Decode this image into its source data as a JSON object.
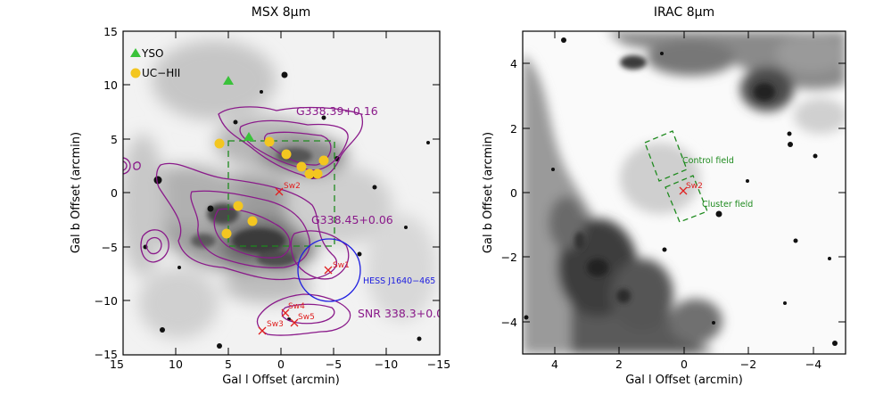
{
  "figure": {
    "left_panel": {
      "title": "MSX 8µm",
      "xlabel": "Gal l Offset (arcmin)",
      "ylabel": "Gal b Offset (arcmin)",
      "xticks": [
        "15",
        "10",
        "5",
        "0",
        "−5",
        "−10",
        "−15"
      ],
      "yticks": [
        "15",
        "10",
        "5",
        "0",
        "−5",
        "−10",
        "−15"
      ],
      "legend": [
        {
          "label": "YSO",
          "marker": "triangle",
          "color": "#3ac23a"
        },
        {
          "label": "UC−HII",
          "marker": "circle",
          "color": "#f3c620"
        }
      ],
      "region_labels": {
        "g338_39": "G338.39+0.16",
        "g338_45": "G338.45+0.06",
        "snr": "SNR 338.3+0.0",
        "hess": "HESS J1640−465"
      },
      "source_labels": [
        "Sw1",
        "Sw2",
        "Sw3",
        "Sw4",
        "Sw5"
      ]
    },
    "right_panel": {
      "title": "IRAC 8µm",
      "xlabel": "Gal l Offset (arcmin)",
      "ylabel": "Gal b Offset (arcmin)",
      "xticks": [
        "4",
        "2",
        "0",
        "−2",
        "−4"
      ],
      "yticks": [
        "4",
        "2",
        "0",
        "−2",
        "−4"
      ],
      "field_labels": {
        "control": "Control field",
        "cluster": "Cluster field",
        "source": "Sw2"
      }
    },
    "colors": {
      "contour": "#8a1a8a",
      "hess_circle": "#2020e0",
      "source_cross": "#e02020",
      "field_box": "#1e8a1e",
      "yso": "#3ac23a",
      "uchii": "#f3c620"
    }
  },
  "chart_data": [
    {
      "type": "scatter",
      "title": "MSX 8µm",
      "xlabel": "Gal l Offset (arcmin)",
      "ylabel": "Gal b Offset (arcmin)",
      "xlim": [
        15,
        -15
      ],
      "ylim": [
        -15,
        15
      ],
      "series": [
        {
          "name": "YSO",
          "points": [
            [
              4.8,
              11.0
            ],
            [
              3.0,
              5.2
            ]
          ]
        },
        {
          "name": "UC-HII",
          "points": [
            [
              3.3,
              4.8
            ],
            [
              -0.5,
              4.8
            ],
            [
              -0.7,
              3.6
            ],
            [
              -2.0,
              2.9
            ],
            [
              -3.2,
              2.5
            ],
            [
              -2.2,
              2.2
            ],
            [
              -3.0,
              1.8
            ],
            [
              -3.8,
              1.8
            ],
            [
              -4.3,
              3.0
            ],
            [
              3.0,
              -2.6
            ],
            [
              4.9,
              -3.6
            ]
          ]
        },
        {
          "name": "Swift sources",
          "points": [
            [
              0.2,
              0.1,
              "Sw2"
            ],
            [
              -4.4,
              -7.3,
              "Sw1"
            ],
            [
              2.0,
              -12.7,
              "Sw3"
            ],
            [
              0.4,
              -11.0,
              "Sw4"
            ],
            [
              -0.8,
              -11.9,
              "Sw5"
            ]
          ]
        }
      ],
      "regions": [
        {
          "name": "HESS J1640-465",
          "shape": "circle",
          "center": [
            -4.3,
            -8.0
          ],
          "radius": 3.6
        },
        {
          "name": "IRAC field",
          "shape": "box",
          "x": [
            5,
            -5
          ],
          "y": [
            -5,
            5
          ]
        }
      ]
    },
    {
      "type": "scatter",
      "title": "IRAC 8µm",
      "xlabel": "Gal l Offset (arcmin)",
      "ylabel": "Gal b Offset (arcmin)",
      "xlim": [
        5,
        -5
      ],
      "ylim": [
        -5,
        5
      ],
      "series": [
        {
          "name": "Swift sources",
          "points": [
            [
              0.0,
              0.05,
              "Sw2"
            ]
          ]
        }
      ],
      "regions": [
        {
          "name": "Control field",
          "shape": "rotated box",
          "center": [
            0.6,
            1.7
          ]
        },
        {
          "name": "Cluster field",
          "shape": "rotated box",
          "center": [
            -0.1,
            -0.1
          ]
        }
      ]
    }
  ]
}
